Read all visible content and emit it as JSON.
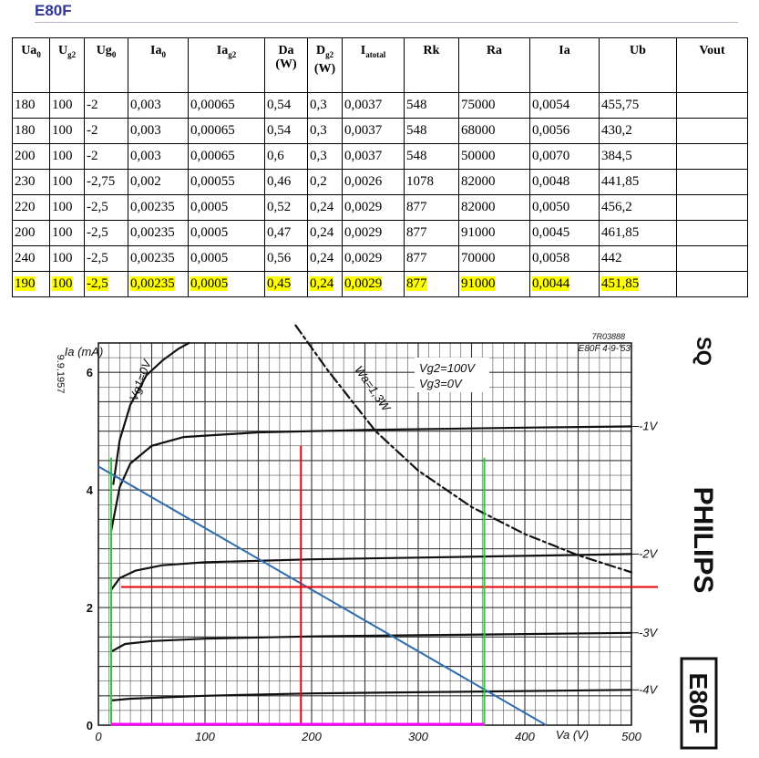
{
  "page_title": "E80F",
  "table": {
    "headers": [
      "Ua0",
      "Ug2",
      "Ug0",
      "Ia0",
      "Iag2",
      "Da (W)",
      "Dg2 (W)",
      "Iatotal",
      "Rk",
      "Ra",
      "Ia",
      "Ub",
      "Vout"
    ],
    "rows": [
      [
        "180",
        "100",
        "-2",
        "0,003",
        "0,00065",
        "0,54",
        "0,3",
        "0,0037",
        "548",
        "75000",
        "0,0054",
        "455,75",
        ""
      ],
      [
        "180",
        "100",
        "-2",
        "0,003",
        "0,00065",
        "0,54",
        "0,3",
        "0,0037",
        "548",
        "68000",
        "0,0056",
        "430,2",
        ""
      ],
      [
        "200",
        "100",
        "-2",
        "0,003",
        "0,00065",
        "0,6",
        "0,3",
        "0,0037",
        "548",
        "50000",
        "0,0070",
        "384,5",
        ""
      ],
      [
        "230",
        "100",
        "-2,75",
        "0,002",
        "0,00055",
        "0,46",
        "0,2",
        "0,0026",
        "1078",
        "82000",
        "0,0048",
        "441,85",
        ""
      ],
      [
        "220",
        "100",
        "-2,5",
        "0,00235",
        "0,0005",
        "0,52",
        "0,24",
        "0,0029",
        "877",
        "82000",
        "0,0050",
        "456,2",
        ""
      ],
      [
        "200",
        "100",
        "-2,5",
        "0,00235",
        "0,0005",
        "0,47",
        "0,24",
        "0,0029",
        "877",
        "91000",
        "0,0045",
        "461,85",
        ""
      ],
      [
        "240",
        "100",
        "-2,5",
        "0,00235",
        "0,0005",
        "0,56",
        "0,24",
        "0,0029",
        "877",
        "70000",
        "0,0058",
        "442",
        ""
      ],
      [
        "190",
        "100",
        "-2,5",
        "0,00235",
        "0,0005",
        "0,45",
        "0,24",
        "0,0029",
        "877",
        "91000",
        "0,0044",
        "451,85",
        ""
      ]
    ],
    "highlight_row": 7,
    "highlight_color": "#ffff00"
  },
  "chart_data": {
    "type": "line",
    "xlabel": "Va (V)",
    "ylabel": "Ia (mA)",
    "xlim": [
      0,
      500
    ],
    "ylim": [
      0,
      6.5
    ],
    "x_ticks": [
      "0",
      "100",
      "200",
      "300",
      "400",
      "500"
    ],
    "y_ticks": [
      "0",
      "2",
      "4",
      "6"
    ],
    "grid": true,
    "doc_code": "7R03888",
    "doc_ref": "E80F 4-9-'53",
    "date_stamp": "9.9.1957",
    "conditions": [
      "Vg2=100V",
      "Vg3=0V"
    ],
    "brand": "PHILIPS",
    "brand_tag": "SQ",
    "tube_label": "E80F",
    "series": [
      {
        "name": "Vg1=0V",
        "x": [
          14,
          20,
          30,
          45,
          60,
          75,
          85
        ],
        "y": [
          4.1,
          4.85,
          5.45,
          5.95,
          6.2,
          6.4,
          6.5
        ]
      },
      {
        "name": "-1V",
        "x": [
          12,
          20,
          30,
          50,
          80,
          150,
          250,
          400,
          500
        ],
        "y": [
          3.3,
          4.05,
          4.45,
          4.75,
          4.9,
          4.98,
          5.02,
          5.06,
          5.08
        ]
      },
      {
        "name": "-2V",
        "x": [
          12,
          20,
          35,
          60,
          100,
          200,
          300,
          400,
          500
        ],
        "y": [
          2.3,
          2.5,
          2.63,
          2.72,
          2.77,
          2.82,
          2.85,
          2.88,
          2.91
        ]
      },
      {
        "name": "-3V",
        "x": [
          12,
          25,
          50,
          100,
          200,
          300,
          400,
          500
        ],
        "y": [
          1.25,
          1.38,
          1.43,
          1.47,
          1.51,
          1.53,
          1.55,
          1.57
        ]
      },
      {
        "name": "-4V",
        "x": [
          12,
          30,
          100,
          200,
          300,
          400,
          500
        ],
        "y": [
          0.42,
          0.45,
          0.5,
          0.54,
          0.56,
          0.58,
          0.6
        ]
      },
      {
        "name": "Wa=1,3W",
        "x": [
          185,
          215,
          260,
          300,
          350,
          400,
          450,
          500
        ],
        "y": [
          6.8,
          6.04,
          5.0,
          4.33,
          3.71,
          3.25,
          2.89,
          2.6
        ]
      }
    ],
    "load_line": {
      "x": [
        0,
        420
      ],
      "y": [
        4.4,
        0
      ]
    },
    "operating_point": {
      "x": 190,
      "y": 2.35
    },
    "markers": {
      "red_vertical_x": 190,
      "red_horizontal_y": 2.35,
      "green_vertical_x": [
        12,
        362
      ]
    },
    "colors": {
      "curve": "#111111",
      "load_line": "#2e6db0",
      "red": "#e8000b",
      "green": "#22cc33",
      "magenta": "#ff00ff",
      "title": "#2f3699"
    }
  }
}
